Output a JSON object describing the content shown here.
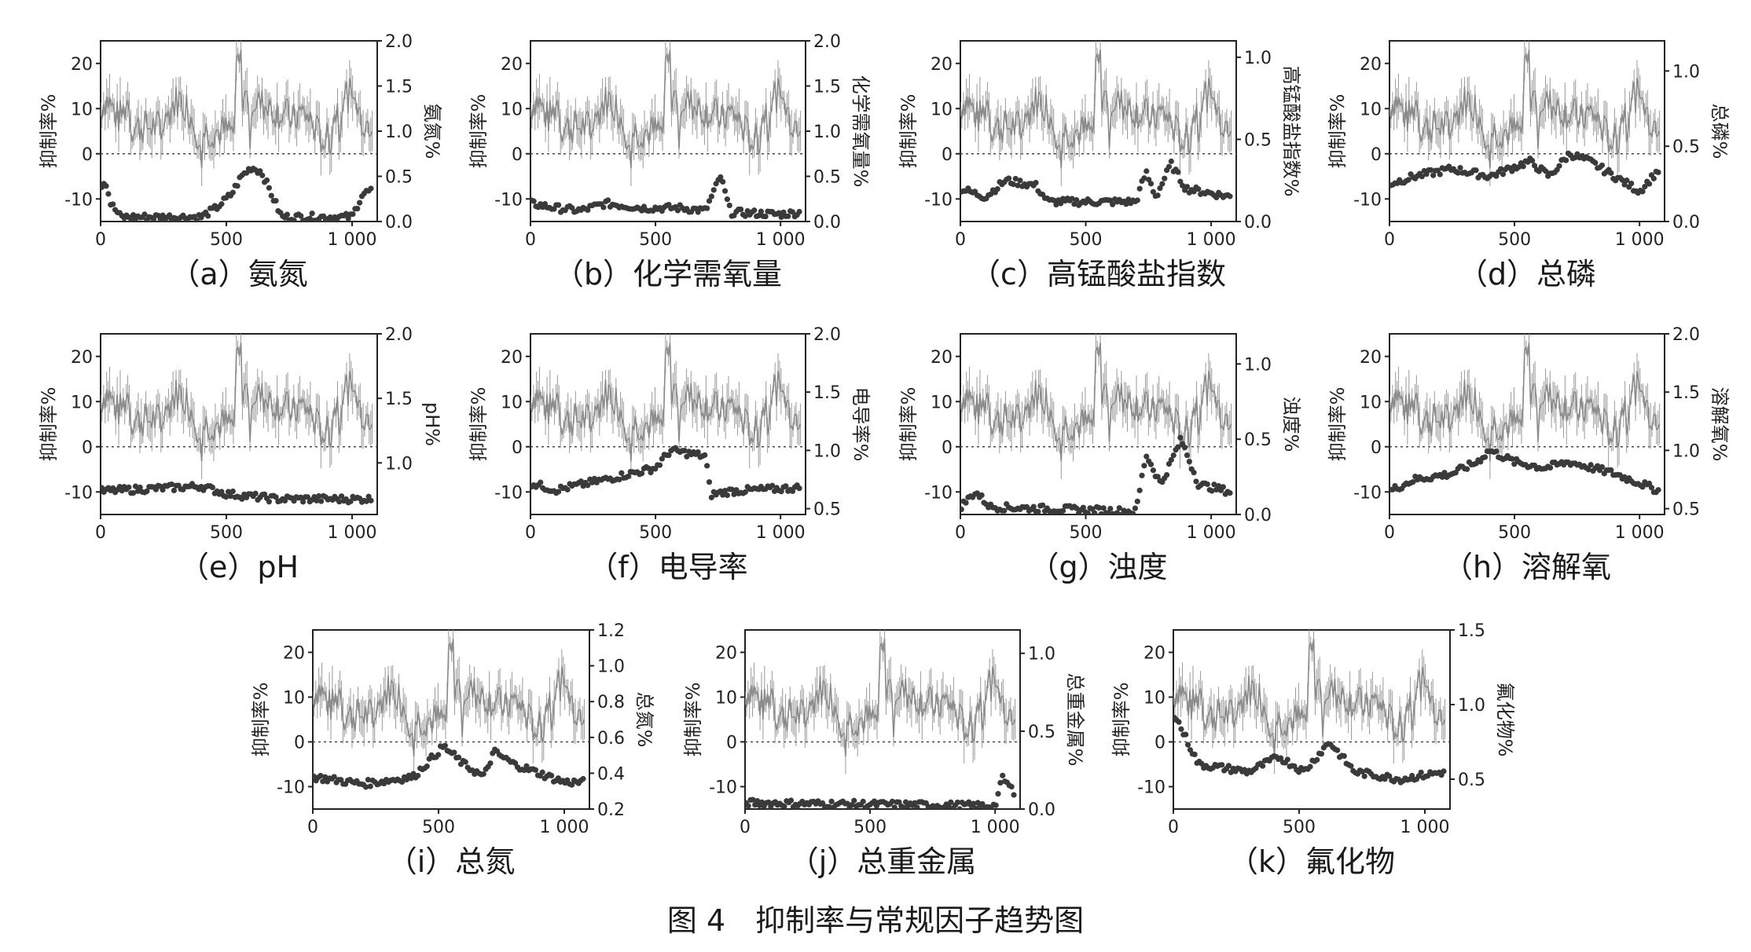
{
  "figure_caption": "图 4　抑制率与常规因子趋势图",
  "shared": {
    "left_axis_label": "抑制率%",
    "left_ticks": [
      20,
      10,
      0,
      -10
    ],
    "x_ticks": [
      "0",
      "500",
      "1 000"
    ],
    "xlim": [
      0,
      1100
    ],
    "left_ylim": [
      -15,
      25
    ]
  },
  "chart_data": [
    {
      "type": "line",
      "panel": "a",
      "caption": "（a）氨氮",
      "right_label": "氨氮%",
      "right_ylim": [
        0,
        2.0
      ],
      "right_ticks": [
        "2.0",
        "1.5",
        "1.0",
        "0.5",
        "0.0"
      ],
      "series": [
        {
          "name": "抑制率%",
          "role": "inhibition"
        },
        {
          "name": "氨氮%",
          "role": "factor",
          "profile": [
            [
              0,
              0.4
            ],
            [
              20,
              0.45
            ],
            [
              40,
              0.2
            ],
            [
              80,
              0.05
            ],
            [
              400,
              0.05
            ],
            [
              460,
              0.15
            ],
            [
              520,
              0.3
            ],
            [
              560,
              0.5
            ],
            [
              600,
              0.6
            ],
            [
              640,
              0.55
            ],
            [
              680,
              0.3
            ],
            [
              720,
              0.05
            ],
            [
              1000,
              0.05
            ],
            [
              1040,
              0.3
            ],
            [
              1080,
              0.35
            ]
          ]
        }
      ]
    },
    {
      "type": "line",
      "panel": "b",
      "caption": "（b）化学需氧量",
      "right_label": "化学需氧量%",
      "right_ylim": [
        0,
        2.0
      ],
      "right_ticks": [
        "2.0",
        "1.5",
        "1.0",
        "0.5",
        "0.0"
      ],
      "series": [
        {
          "name": "抑制率%",
          "role": "inhibition"
        },
        {
          "name": "化学需氧量%",
          "role": "factor",
          "profile": [
            [
              0,
              0.2
            ],
            [
              100,
              0.15
            ],
            [
              200,
              0.12
            ],
            [
              300,
              0.2
            ],
            [
              450,
              0.15
            ],
            [
              600,
              0.15
            ],
            [
              700,
              0.12
            ],
            [
              760,
              0.5
            ],
            [
              800,
              0.1
            ],
            [
              1000,
              0.08
            ],
            [
              1080,
              0.1
            ]
          ]
        }
      ]
    },
    {
      "type": "line",
      "panel": "c",
      "caption": "（c）高锰酸盐指数",
      "right_label": "高锰酸盐指数%",
      "right_ylim": [
        0,
        1.1
      ],
      "right_ticks": [
        "1.0",
        "0.5",
        "0.0"
      ],
      "series": [
        {
          "name": "抑制率%",
          "role": "inhibition"
        },
        {
          "name": "高锰酸盐指数%",
          "role": "factor",
          "profile": [
            [
              0,
              0.2
            ],
            [
              100,
              0.15
            ],
            [
              180,
              0.25
            ],
            [
              300,
              0.22
            ],
            [
              350,
              0.12
            ],
            [
              600,
              0.12
            ],
            [
              700,
              0.12
            ],
            [
              740,
              0.3
            ],
            [
              780,
              0.15
            ],
            [
              840,
              0.35
            ],
            [
              900,
              0.2
            ],
            [
              1080,
              0.15
            ]
          ]
        }
      ]
    },
    {
      "type": "line",
      "panel": "d",
      "caption": "（d）总磷",
      "right_label": "总磷%",
      "right_ylim": [
        0,
        1.2
      ],
      "right_ticks": [
        "1.0",
        "0.5",
        "0.0"
      ],
      "series": [
        {
          "name": "抑制率%",
          "role": "inhibition"
        },
        {
          "name": "总磷%",
          "role": "factor",
          "profile": [
            [
              0,
              0.25
            ],
            [
              100,
              0.3
            ],
            [
              250,
              0.35
            ],
            [
              400,
              0.3
            ],
            [
              560,
              0.4
            ],
            [
              640,
              0.3
            ],
            [
              720,
              0.45
            ],
            [
              800,
              0.4
            ],
            [
              900,
              0.3
            ],
            [
              1000,
              0.2
            ],
            [
              1080,
              0.35
            ]
          ]
        }
      ]
    },
    {
      "type": "line",
      "panel": "e",
      "caption": "（e）pH",
      "right_label": "pH%",
      "right_ylim": [
        0.6,
        2.0
      ],
      "right_ticks": [
        "2.0",
        "1.5",
        "1.0"
      ],
      "series": [
        {
          "name": "抑制率%",
          "role": "inhibition"
        },
        {
          "name": "pH%",
          "role": "factor",
          "profile": [
            [
              0,
              0.78
            ],
            [
              400,
              0.82
            ],
            [
              500,
              0.76
            ],
            [
              700,
              0.72
            ],
            [
              1080,
              0.72
            ]
          ]
        }
      ]
    },
    {
      "type": "line",
      "panel": "f",
      "caption": "（f）电导率",
      "right_label": "电导率%",
      "right_ylim": [
        0.45,
        2.0
      ],
      "right_ticks": [
        "2.0",
        "1.5",
        "1.0",
        "0.5"
      ],
      "series": [
        {
          "name": "抑制率%",
          "role": "inhibition"
        },
        {
          "name": "电导率%",
          "role": "factor",
          "profile": [
            [
              0,
              0.72
            ],
            [
              100,
              0.66
            ],
            [
              300,
              0.75
            ],
            [
              500,
              0.85
            ],
            [
              560,
              1.0
            ],
            [
              700,
              0.95
            ],
            [
              720,
              0.62
            ],
            [
              800,
              0.65
            ],
            [
              1080,
              0.68
            ]
          ]
        }
      ]
    },
    {
      "type": "line",
      "panel": "g",
      "caption": "（g）浊度",
      "right_label": "浊度%",
      "right_ylim": [
        0,
        1.2
      ],
      "right_ticks": [
        "1.0",
        "0.5",
        "0.0"
      ],
      "series": [
        {
          "name": "抑制率%",
          "role": "inhibition"
        },
        {
          "name": "浊度%",
          "role": "factor",
          "profile": [
            [
              0,
              0.05
            ],
            [
              60,
              0.15
            ],
            [
              120,
              0.05
            ],
            [
              700,
              0.02
            ],
            [
              740,
              0.4
            ],
            [
              800,
              0.2
            ],
            [
              880,
              0.5
            ],
            [
              950,
              0.2
            ],
            [
              1080,
              0.15
            ]
          ]
        }
      ]
    },
    {
      "type": "line",
      "panel": "h",
      "caption": "（h）溶解氧",
      "right_label": "溶解氧%",
      "right_ylim": [
        0.45,
        2.0
      ],
      "right_ticks": [
        "2.0",
        "1.5",
        "1.0",
        "0.5"
      ],
      "series": [
        {
          "name": "抑制率%",
          "role": "inhibition"
        },
        {
          "name": "溶解氧%",
          "role": "factor",
          "profile": [
            [
              0,
              0.65
            ],
            [
              100,
              0.75
            ],
            [
              250,
              0.8
            ],
            [
              350,
              0.9
            ],
            [
              400,
              1.0
            ],
            [
              500,
              0.9
            ],
            [
              620,
              0.85
            ],
            [
              720,
              0.9
            ],
            [
              900,
              0.8
            ],
            [
              1000,
              0.72
            ],
            [
              1080,
              0.65
            ]
          ]
        }
      ]
    },
    {
      "type": "line",
      "panel": "i",
      "caption": "（i）总氮",
      "right_label": "总氮%",
      "right_ylim": [
        0.2,
        1.2
      ],
      "right_ticks": [
        "1.2",
        "1.0",
        "0.8",
        "0.6",
        "0.4",
        "0.2"
      ],
      "series": [
        {
          "name": "抑制率%",
          "role": "inhibition"
        },
        {
          "name": "总氮%",
          "role": "factor",
          "profile": [
            [
              0,
              0.38
            ],
            [
              200,
              0.34
            ],
            [
              400,
              0.38
            ],
            [
              520,
              0.55
            ],
            [
              600,
              0.45
            ],
            [
              680,
              0.38
            ],
            [
              720,
              0.52
            ],
            [
              800,
              0.45
            ],
            [
              1000,
              0.35
            ],
            [
              1080,
              0.35
            ]
          ]
        }
      ]
    },
    {
      "type": "line",
      "panel": "j",
      "caption": "（j）总重金属",
      "right_label": "总重金属%",
      "right_ylim": [
        0,
        1.15
      ],
      "right_ticks": [
        "1.0",
        "0.5",
        "0.0"
      ],
      "series": [
        {
          "name": "抑制率%",
          "role": "inhibition"
        },
        {
          "name": "总重金属%",
          "role": "factor",
          "profile": [
            [
              0,
              0.04
            ],
            [
              500,
              0.03
            ],
            [
              1000,
              0.02
            ],
            [
              1030,
              0.2
            ],
            [
              1080,
              0.1
            ]
          ]
        }
      ]
    },
    {
      "type": "line",
      "panel": "k",
      "caption": "（k）氟化物",
      "right_label": "氟化物%",
      "right_ylim": [
        0.3,
        1.5
      ],
      "right_ticks": [
        "1.5",
        "1.0",
        "0.5"
      ],
      "series": [
        {
          "name": "抑制率%",
          "role": "inhibition"
        },
        {
          "name": "氟化物%",
          "role": "factor",
          "profile": [
            [
              0,
              0.95
            ],
            [
              100,
              0.6
            ],
            [
              300,
              0.55
            ],
            [
              420,
              0.65
            ],
            [
              520,
              0.55
            ],
            [
              620,
              0.75
            ],
            [
              720,
              0.55
            ],
            [
              900,
              0.5
            ],
            [
              1080,
              0.55
            ]
          ]
        }
      ]
    }
  ]
}
